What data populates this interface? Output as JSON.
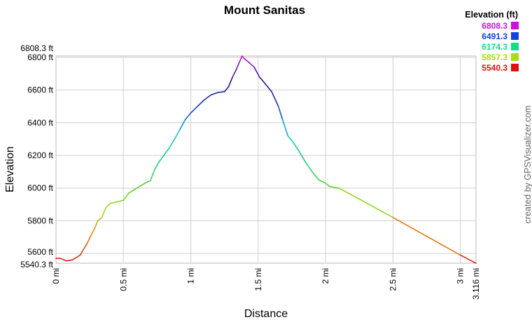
{
  "chart_data": {
    "type": "line",
    "title": "Mount Sanitas",
    "xlabel": "Distance",
    "ylabel": "Elevation",
    "xlim": [
      0,
      3.116
    ],
    "ylim": [
      5540.3,
      6808.3
    ],
    "x_unit": "mi",
    "y_unit": "ft",
    "x_ticks": [
      {
        "value": 0,
        "label": "0 mi"
      },
      {
        "value": 0.5,
        "label": "0.5 mi"
      },
      {
        "value": 1,
        "label": "1 mi"
      },
      {
        "value": 1.5,
        "label": "1.5 mi"
      },
      {
        "value": 2,
        "label": "2 mi"
      },
      {
        "value": 2.5,
        "label": "2.5 mi"
      },
      {
        "value": 3,
        "label": "3 mi"
      },
      {
        "value": 3.116,
        "label": "3.116 mi"
      }
    ],
    "y_ticks": [
      {
        "value": 5540.3,
        "label": "5540.3 ft"
      },
      {
        "value": 5600,
        "label": "5600 ft"
      },
      {
        "value": 5800,
        "label": "5800 ft"
      },
      {
        "value": 6000,
        "label": "6000 ft"
      },
      {
        "value": 6200,
        "label": "6200 ft"
      },
      {
        "value": 6400,
        "label": "6400 ft"
      },
      {
        "value": 6600,
        "label": "6600 ft"
      },
      {
        "value": 6800,
        "label": "6800 ft"
      },
      {
        "value": 6808.3,
        "label": "6808.3 ft"
      }
    ],
    "grid": true,
    "legend": {
      "title": "Elevation (ft)",
      "placement": "top-right",
      "items": [
        {
          "label": "6808.3",
          "color": "#cc11dd"
        },
        {
          "label": "6491.3",
          "color": "#1144dd"
        },
        {
          "label": "6174.3",
          "color": "#11dd88"
        },
        {
          "label": "5857.3",
          "color": "#aadd11"
        },
        {
          "label": "5540.3",
          "color": "#dd1111"
        }
      ]
    },
    "series": [
      {
        "x": [
          0,
          0.03,
          0.06,
          0.08,
          0.12,
          0.15,
          0.18,
          0.2,
          0.23,
          0.26,
          0.29,
          0.31,
          0.34,
          0.37,
          0.4,
          0.45,
          0.5,
          0.54,
          0.58,
          0.62,
          0.67,
          0.7,
          0.73,
          0.76,
          0.8,
          0.84,
          0.88,
          0.92,
          0.96,
          1.0,
          1.05,
          1.1,
          1.15,
          1.2,
          1.25,
          1.28,
          1.31,
          1.34,
          1.36,
          1.38,
          1.4,
          1.43,
          1.47,
          1.51,
          1.55,
          1.6,
          1.65,
          1.68,
          1.72,
          1.76,
          1.8,
          1.85,
          1.9,
          1.95,
          2.0,
          2.03,
          2.06,
          2.1,
          2.5,
          3.0,
          3.116
        ],
        "y": [
          5570,
          5570,
          5560,
          5555,
          5560,
          5575,
          5590,
          5620,
          5660,
          5710,
          5760,
          5800,
          5820,
          5880,
          5905,
          5915,
          5925,
          5970,
          5990,
          6010,
          6035,
          6045,
          6110,
          6155,
          6200,
          6245,
          6300,
          6360,
          6420,
          6460,
          6500,
          6540,
          6570,
          6585,
          6590,
          6620,
          6680,
          6730,
          6770,
          6808,
          6790,
          6770,
          6740,
          6680,
          6640,
          6590,
          6500,
          6420,
          6320,
          6280,
          6230,
          6160,
          6100,
          6050,
          6030,
          6010,
          6005,
          6000,
          5820,
          5590,
          5540
        ]
      }
    ]
  }
}
